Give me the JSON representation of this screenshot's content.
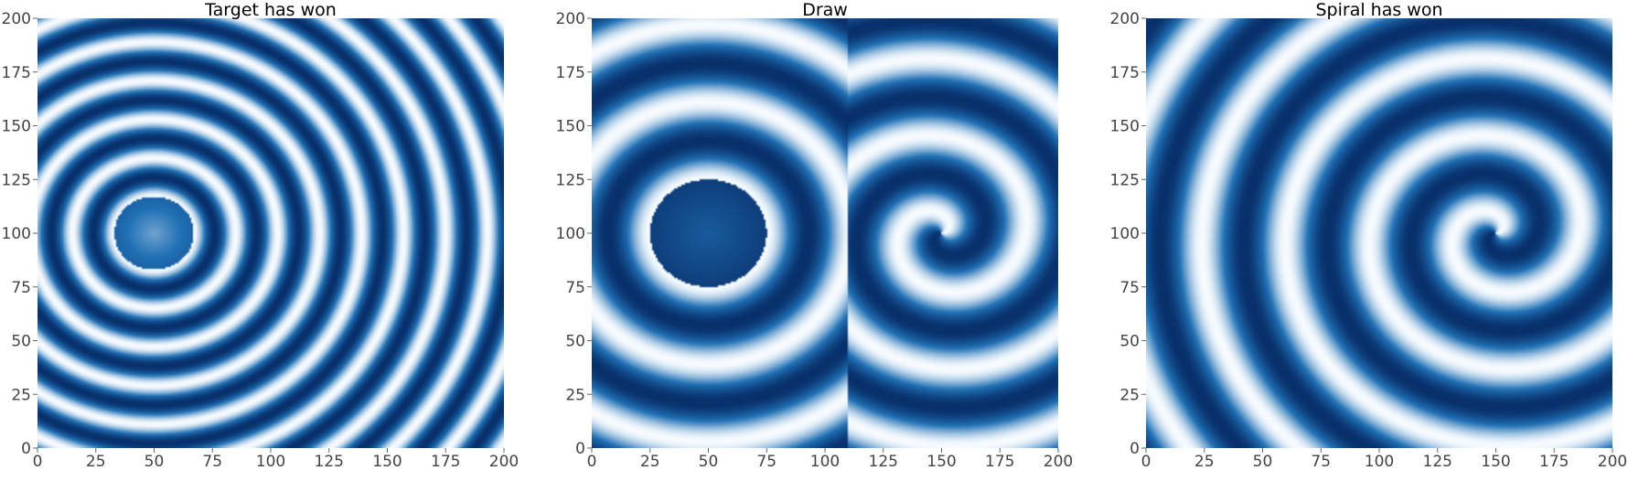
{
  "colormap": {
    "name": "Blues",
    "light": "#f7fbff",
    "dark": "#08306b"
  },
  "chart_data": [
    {
      "type": "heatmap",
      "title": "Target has won",
      "xlabel": "",
      "ylabel": "",
      "xlim": [
        0,
        200
      ],
      "ylim": [
        0,
        200
      ],
      "xticks": [
        0,
        25,
        50,
        75,
        100,
        125,
        150,
        175,
        200
      ],
      "yticks": [
        0,
        25,
        50,
        75,
        100,
        125,
        150,
        175,
        200
      ],
      "grid": false,
      "pattern": {
        "kind": "target",
        "center": [
          50,
          100
        ],
        "core_radius": 17,
        "wavelength": 18
      }
    },
    {
      "type": "heatmap",
      "title": "Draw",
      "xlabel": "",
      "ylabel": "",
      "xlim": [
        0,
        200
      ],
      "ylim": [
        0,
        200
      ],
      "xticks": [
        0,
        25,
        50,
        75,
        100,
        125,
        150,
        175,
        200
      ],
      "yticks": [
        0,
        25,
        50,
        75,
        100,
        125,
        150,
        175,
        200
      ],
      "grid": false,
      "pattern": {
        "kind": "draw",
        "target_center": [
          50,
          100
        ],
        "spiral_center": [
          150,
          100
        ],
        "core_radius": 25,
        "boundary_x": 110,
        "wavelength": 36
      }
    },
    {
      "type": "heatmap",
      "title": "Spiral has won",
      "xlabel": "",
      "ylabel": "",
      "xlim": [
        0,
        200
      ],
      "ylim": [
        0,
        200
      ],
      "xticks": [
        0,
        25,
        50,
        75,
        100,
        125,
        150,
        175,
        200
      ],
      "yticks": [
        0,
        25,
        50,
        75,
        100,
        125,
        150,
        175,
        200
      ],
      "grid": false,
      "pattern": {
        "kind": "spiral",
        "center": [
          150,
          100
        ],
        "wavelength": 36
      }
    }
  ]
}
